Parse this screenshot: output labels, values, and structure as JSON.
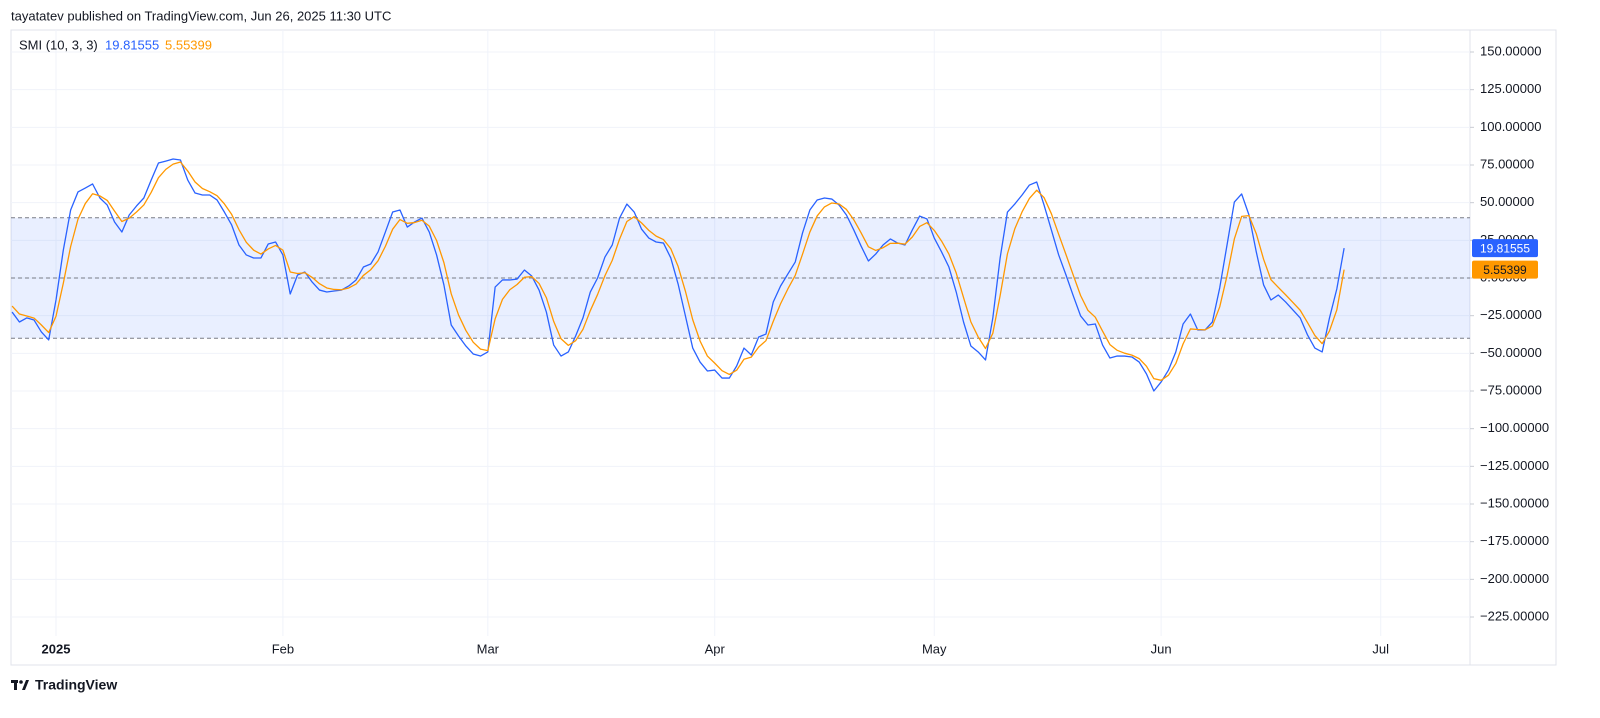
{
  "header": {
    "text": "tayatatev published on TradingView.com, Jun 26, 2025 11:30 UTC"
  },
  "footer": {
    "brand": "TradingView"
  },
  "chart_data": {
    "type": "line",
    "legend_title": "SMI (10, 3, 3)",
    "x": [
      -6,
      -5,
      -4,
      -3,
      -2,
      -1,
      0,
      1,
      2,
      3,
      4,
      5,
      6,
      7,
      8,
      9,
      10,
      11,
      12,
      13,
      14,
      15,
      16,
      17,
      18,
      19,
      20,
      21,
      22,
      23,
      24,
      25,
      26,
      27,
      28,
      29,
      30,
      31,
      32,
      33,
      34,
      35,
      36,
      37,
      38,
      39,
      40,
      41,
      42,
      43,
      44,
      45,
      46,
      47,
      48,
      49,
      50,
      51,
      52,
      53,
      54,
      55,
      56,
      57,
      58,
      59,
      60,
      61,
      62,
      63,
      64,
      65,
      66,
      67,
      68,
      69,
      70,
      71,
      72,
      73,
      74,
      75,
      76,
      77,
      78,
      79,
      80,
      81,
      82,
      83,
      84,
      85,
      86,
      87,
      88,
      89,
      90,
      91,
      92,
      93,
      94,
      95,
      96,
      97,
      98,
      99,
      100,
      101,
      102,
      103,
      104,
      105,
      106,
      107,
      108,
      109,
      110,
      111,
      112,
      113,
      114,
      115,
      116,
      117,
      118,
      119,
      120,
      121,
      122,
      123,
      124,
      125,
      126,
      127,
      128,
      129,
      130,
      131,
      132,
      133,
      134,
      135,
      136,
      137,
      138,
      139,
      140,
      141,
      142,
      143,
      144,
      145,
      146,
      147,
      148,
      149,
      150,
      151,
      152,
      153,
      154,
      155,
      156,
      157,
      158,
      159,
      160,
      161,
      162,
      163,
      164,
      165,
      166,
      167,
      168,
      169,
      170,
      171,
      172,
      173,
      174,
      175,
      176
    ],
    "series": [
      {
        "color": "#2962ff",
        "values": [
          -22.6,
          -29.2,
          -26.5,
          -27.9,
          -35.8,
          -41.1,
          -14.6,
          18.6,
          45.1,
          57.1,
          59.7,
          62.4,
          53.1,
          48.4,
          37.2,
          30.5,
          41.8,
          47.8,
          53.1,
          65.0,
          76.3,
          77.6,
          79.0,
          78.3,
          65.0,
          56.4,
          55.1,
          55.1,
          51.8,
          43.8,
          35.2,
          21.9,
          15.3,
          13.3,
          13.3,
          22.6,
          23.9,
          15.3,
          -10.6,
          2.0,
          4.0,
          -2.7,
          -8.0,
          -9.3,
          -8.6,
          -8.0,
          -5.3,
          -1.3,
          7.3,
          9.3,
          17.3,
          30.5,
          43.8,
          45.1,
          33.8,
          37.2,
          39.8,
          30.5,
          15.3,
          -4.6,
          -31.2,
          -38.5,
          -45.1,
          -50.4,
          -51.8,
          -49.1,
          -6.0,
          -1.3,
          -1.3,
          -0.7,
          5.3,
          1.3,
          -8.0,
          -22.6,
          -44.5,
          -51.8,
          -49.1,
          -38.5,
          -26.5,
          -9.3,
          0,
          13.9,
          21.9,
          39.8,
          49.1,
          43.8,
          32.5,
          26.5,
          23.9,
          23.2,
          13.3,
          -4.0,
          -25.2,
          -46.5,
          -55.8,
          -61.7,
          -61.1,
          -66.4,
          -66.4,
          -58.4,
          -46.5,
          -51.1,
          -39.2,
          -37.2,
          -15.9,
          -5.3,
          2.7,
          10.6,
          29.9,
          45.1,
          51.8,
          53.1,
          52.4,
          48.4,
          41.8,
          31.9,
          21.2,
          11.3,
          15.9,
          21.9,
          25.9,
          23.2,
          21.9,
          31.9,
          41.1,
          39.2,
          26.5,
          17.3,
          7.3,
          -9.3,
          -29.2,
          -45.1,
          -49.1,
          -54.4,
          -26.5,
          13.3,
          43.8,
          49.1,
          55.1,
          61.7,
          63.7,
          48.4,
          31.9,
          15.3,
          2.0,
          -11.9,
          -25.2,
          -31.2,
          -30.5,
          -44.5,
          -53.1,
          -51.8,
          -51.8,
          -52.4,
          -55.8,
          -63.7,
          -75.0,
          -69.0,
          -61.1,
          -49.1,
          -30.5,
          -23.9,
          -34.5,
          -34.5,
          -29.2,
          -6.6,
          21.9,
          50.4,
          55.8,
          41.8,
          17.3,
          -4.6,
          -14.6,
          -11.3,
          -15.9,
          -21.2,
          -26.5,
          -37.8,
          -46.5,
          -49.1,
          -26.5,
          -7.3,
          19.81555
        ]
      },
      {
        "color": "#ff9800",
        "values": [
          -18.6,
          -23.9,
          -25.2,
          -26.6,
          -31.2,
          -36.2,
          -25.4,
          -3.4,
          20.9,
          39.0,
          49.4,
          55.9,
          54.5,
          51.5,
          44.4,
          37.5,
          39.7,
          43.8,
          48.5,
          56.8,
          66.6,
          72.1,
          75.6,
          77.0,
          71.0,
          63.7,
          59.4,
          57.3,
          54.6,
          49.2,
          42.2,
          32.1,
          23.7,
          18.5,
          15.9,
          19.3,
          21.6,
          18.5,
          4.0,
          3.0,
          3.5,
          0.4,
          -3.8,
          -6.6,
          -7.6,
          -7.8,
          -6.6,
          -4.0,
          1.7,
          5.5,
          11.4,
          21.0,
          32.4,
          38.8,
          36.3,
          36.8,
          38.3,
          34.4,
          24.9,
          10.2,
          -10.5,
          -24.5,
          -34.8,
          -42.6,
          -47.2,
          -48.2,
          -27.1,
          -14.2,
          -7.8,
          -4.3,
          0.5,
          0.9,
          -3.6,
          -13.1,
          -28.8,
          -40.3,
          -44.7,
          -41.6,
          -34.1,
          -21.7,
          -10.9,
          1.5,
          11.7,
          25.8,
          37.5,
          40.7,
          36.6,
          31.6,
          27.8,
          25.5,
          19.4,
          7.7,
          -8.8,
          -27.7,
          -41.8,
          -51.8,
          -56.5,
          -61.5,
          -64.0,
          -61.2,
          -53.9,
          -52.5,
          -45.9,
          -41.6,
          -28.8,
          -17.1,
          -7.2,
          1.7,
          15.8,
          30.5,
          41.2,
          47.2,
          49.8,
          49.1,
          45.5,
          38.7,
          30.0,
          20.7,
          18.3,
          20.1,
          23.0,
          23.1,
          22.5,
          27.2,
          34.2,
          36.7,
          31.6,
          24.5,
          15.9,
          3.3,
          -13.0,
          -29.1,
          -39.1,
          -46.8,
          -36.7,
          -11.7,
          16.1,
          32.6,
          43.9,
          52.8,
          58.3,
          53.4,
          42.7,
          29.0,
          15.5,
          1.8,
          -11.7,
          -21.5,
          -26.0,
          -35.3,
          -44.2,
          -48.0,
          -49.9,
          -51.2,
          -53.5,
          -58.6,
          -66.8,
          -67.9,
          -64.5,
          -56.8,
          -43.7,
          -33.8,
          -34.2,
          -34.4,
          -31.8,
          -19.2,
          1.4,
          25.9,
          40.9,
          41.4,
          29.4,
          12.4,
          -1.1,
          -6.2,
          -11.1,
          -16.2,
          -21.4,
          -29.6,
          -38.1,
          -43.6,
          -35.1,
          -21.2,
          5.55399
        ]
      }
    ],
    "bands": {
      "upper": 40,
      "middle": 0,
      "lower": -40,
      "color": "#2962ff"
    },
    "xlim": [
      -6.15,
      193.2
    ],
    "xticks": [
      {
        "value": 0,
        "label": "2025"
      },
      {
        "value": 31,
        "label": "Feb"
      },
      {
        "value": 59,
        "label": "Mar"
      },
      {
        "value": 90,
        "label": "Apr"
      },
      {
        "value": 120,
        "label": "May"
      },
      {
        "value": 151,
        "label": "Jun"
      },
      {
        "value": 181,
        "label": "Jul"
      }
    ],
    "ylim": [
      -237.6,
      164.6
    ],
    "yticks": [
      {
        "value": 150,
        "label": "150.00000"
      },
      {
        "value": 125,
        "label": "125.00000"
      },
      {
        "value": 100,
        "label": "100.00000"
      },
      {
        "value": 75,
        "label": "75.00000"
      },
      {
        "value": 50,
        "label": "50.00000"
      },
      {
        "value": 25,
        "label": "25.00000"
      },
      {
        "value": 0,
        "label": "0.00000"
      },
      {
        "value": -25,
        "label": "−25.00000"
      },
      {
        "value": -50,
        "label": "−50.00000"
      },
      {
        "value": -75,
        "label": "−75.00000"
      },
      {
        "value": -100,
        "label": "−100.00000"
      },
      {
        "value": -125,
        "label": "−125.00000"
      },
      {
        "value": -150,
        "label": "−150.00000"
      },
      {
        "value": -175,
        "label": "−175.00000"
      },
      {
        "value": -200,
        "label": "−200.00000"
      },
      {
        "value": -225,
        "label": "−225.00000"
      }
    ],
    "grid": true
  }
}
